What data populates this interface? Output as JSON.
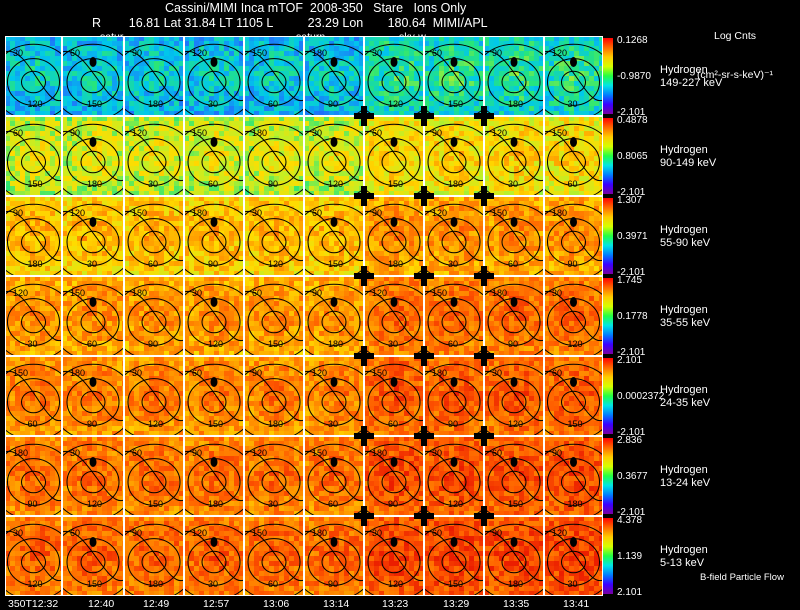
{
  "header": {
    "title": "Cassini/MIMI Inca mTOF  2008-350   Stare   Ions Only",
    "line2": "R        16.81 Lat 31.84 LT 1105 L          23.29 Lon       180.64  MIMI/APL",
    "legend_title_1": "Log Cnts",
    "legend_title_2": "(cm²-sr-s-keV)⁻¹"
  },
  "overlay_labels": [
    "satur",
    "saturn",
    "sky-w"
  ],
  "rows": [
    {
      "species": "Hydrogen",
      "energy": "149-227 keV",
      "cb_top": "0.1268",
      "cb_mid": "-0.9870",
      "cb_bot": "-2.101",
      "level": 0.25
    },
    {
      "species": "Hydrogen",
      "energy": "90-149 keV",
      "cb_top": "0.4878",
      "cb_mid": "0.8065",
      "cb_bot": "-2.101",
      "level": 0.55
    },
    {
      "species": "Hydrogen",
      "energy": "55-90 keV",
      "cb_top": "1.307",
      "cb_mid": "0.3971",
      "cb_bot": "-2.101",
      "level": 0.7
    },
    {
      "species": "Hydrogen",
      "energy": "35-55 keV",
      "cb_top": "1.745",
      "cb_mid": "0.1778",
      "cb_bot": "-2.101",
      "level": 0.78
    },
    {
      "species": "Hydrogen",
      "energy": "24-35 keV",
      "cb_top": "2.101",
      "cb_mid": "0.0002372",
      "cb_bot": "-2.101",
      "level": 0.82
    },
    {
      "species": "Hydrogen",
      "energy": "13-24 keV",
      "cb_top": "2.836",
      "cb_mid": "0.3677",
      "cb_bot": "-2.101",
      "level": 0.85
    },
    {
      "species": "Hydrogen",
      "energy": "5-13 keV",
      "cb_top": "4.378",
      "cb_mid": "1.139",
      "cb_bot": "2.101",
      "level": 0.88
    }
  ],
  "times": [
    "350T12:32",
    "12:40",
    "12:49",
    "12:57",
    "13:06",
    "13:14",
    "13:23",
    "13:29",
    "13:35",
    "13:41"
  ],
  "contour_labels": [
    "30",
    "60",
    "90",
    "120",
    "150",
    "180"
  ],
  "footer_note": "B-field Particle Flow",
  "colors": {
    "background": "#000000",
    "contour": "#000000",
    "panel_border": "#ffffff"
  },
  "colorbar_colors": [
    "#ff0000",
    "#ff6a00",
    "#ffcc00",
    "#d6ff00",
    "#22ff44",
    "#00e6e6",
    "#007dff",
    "#3a00ff",
    "#7a00a0"
  ]
}
